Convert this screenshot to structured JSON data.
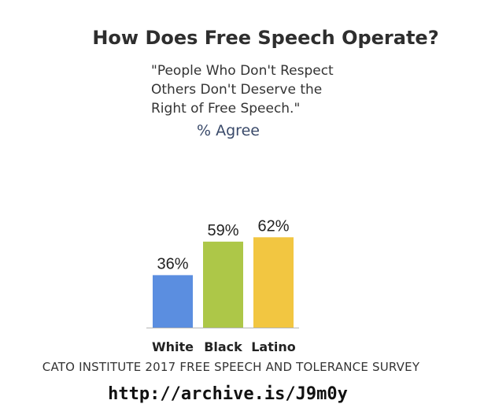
{
  "chart_data": {
    "type": "bar",
    "title": "How Does Free Speech Operate?",
    "quote": "\"People Who Don't Respect\nOthers Don't Deserve the\nRight of Free Speech.\"",
    "subtitle": "% Agree",
    "categories": [
      "White",
      "Black",
      "Latino"
    ],
    "values": [
      36,
      59,
      62
    ],
    "value_labels": [
      "36%",
      "59%",
      "62%"
    ],
    "colors": [
      "#5b8ee0",
      "#adc748",
      "#f2c641"
    ],
    "ylim": [
      0,
      100
    ],
    "grid": false,
    "legend": "none"
  },
  "footer": {
    "source": "CATO INSTITUTE 2017 FREE SPEECH AND TOLERANCE SURVEY",
    "url": "http://archive.is/J9m0y"
  }
}
